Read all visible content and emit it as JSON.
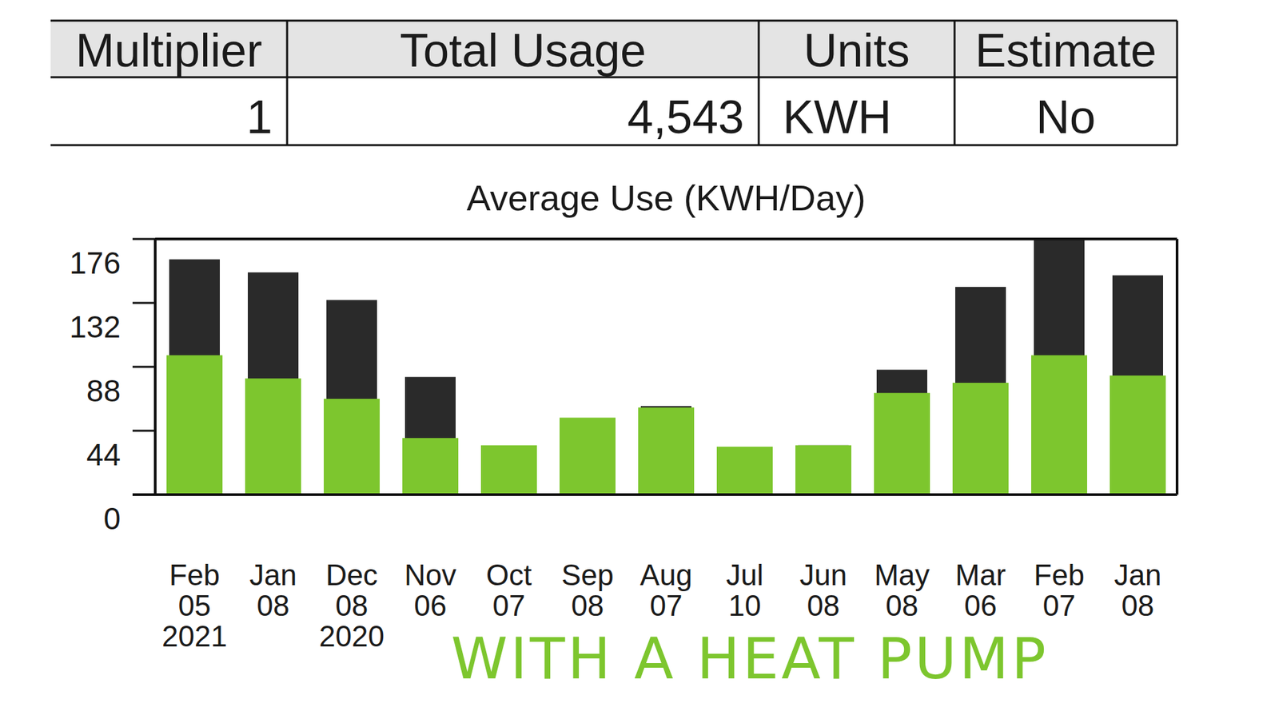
{
  "table": {
    "columns": [
      "Multiplier",
      "Total Usage",
      "Units",
      "Estimate"
    ],
    "rows": [
      [
        "1",
        "4,543",
        "KWH",
        "No"
      ]
    ]
  },
  "chart_data": {
    "type": "bar",
    "title": "Average Use (KWH/Day)",
    "categories": [
      "Feb 05 2021",
      "Jan 08",
      "Dec 08 2020",
      "Nov 06",
      "Oct 07",
      "Sep 08",
      "Aug 07",
      "Jul 10",
      "Jun 08",
      "May 08",
      "Mar 06",
      "Feb 07",
      "Jan 08"
    ],
    "series": [
      {
        "color": "#2a2a2a",
        "values": [
          162,
          153,
          134,
          81,
          33,
          52,
          61,
          33,
          34,
          86,
          143,
          176,
          151
        ]
      },
      {
        "color": "#7dc62e",
        "values": [
          96,
          80,
          66,
          39,
          34,
          53,
          60,
          33,
          34,
          70,
          77,
          96,
          82
        ]
      }
    ],
    "stacked": false,
    "ylim": [
      0,
      176
    ],
    "yticks": [
      0,
      44,
      88,
      132,
      176
    ],
    "grid": false,
    "annotations": [
      {
        "text": "WITH A HEAT PUMP",
        "color": "#7dc62e"
      }
    ]
  }
}
